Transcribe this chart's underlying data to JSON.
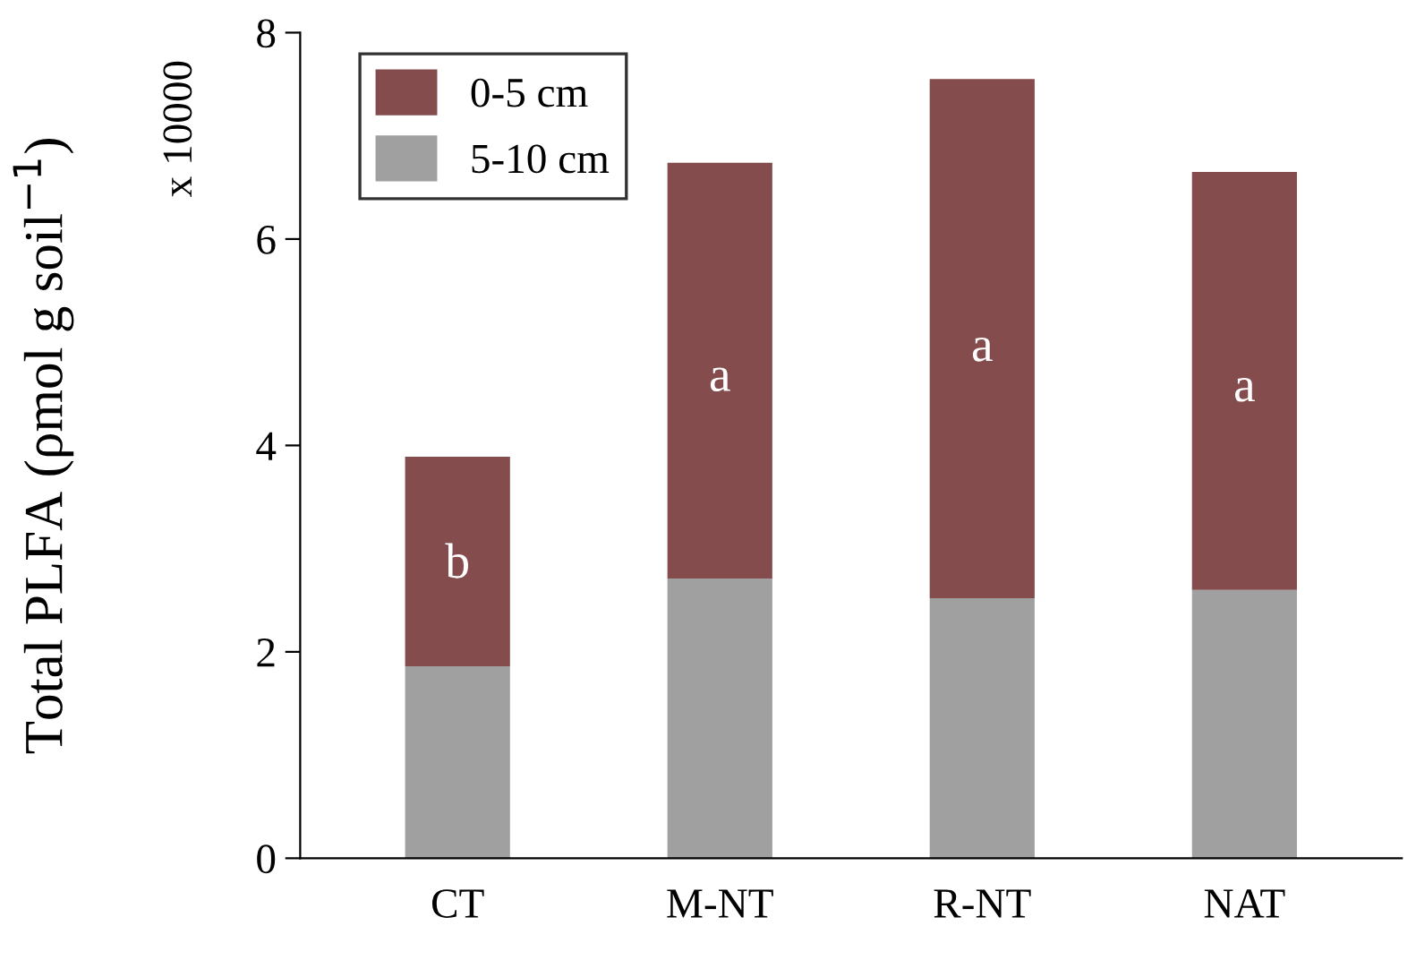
{
  "chart_data": {
    "type": "bar",
    "stacked": true,
    "ylabel": "Total PLFA (ρmol g soil$^{−1}$)",
    "categories": [
      "CT",
      "M-NT",
      "R-NT",
      "NAT"
    ],
    "series": [
      {
        "name": "5-10 cm",
        "color": "#a0a0a0",
        "values": [
          1.86,
          2.71,
          2.52,
          2.6
        ]
      },
      {
        "name": "0-5 cm",
        "color": "#844c4c",
        "values": [
          2.03,
          4.03,
          5.03,
          4.05
        ]
      }
    ],
    "ylim": [
      0,
      8
    ],
    "yticks": [
      0,
      2,
      4,
      6,
      8
    ],
    "legend": "top left",
    "grid": false,
    "annotations": [
      "x 10000",
      "b",
      "a",
      "a",
      "a"
    ]
  }
}
